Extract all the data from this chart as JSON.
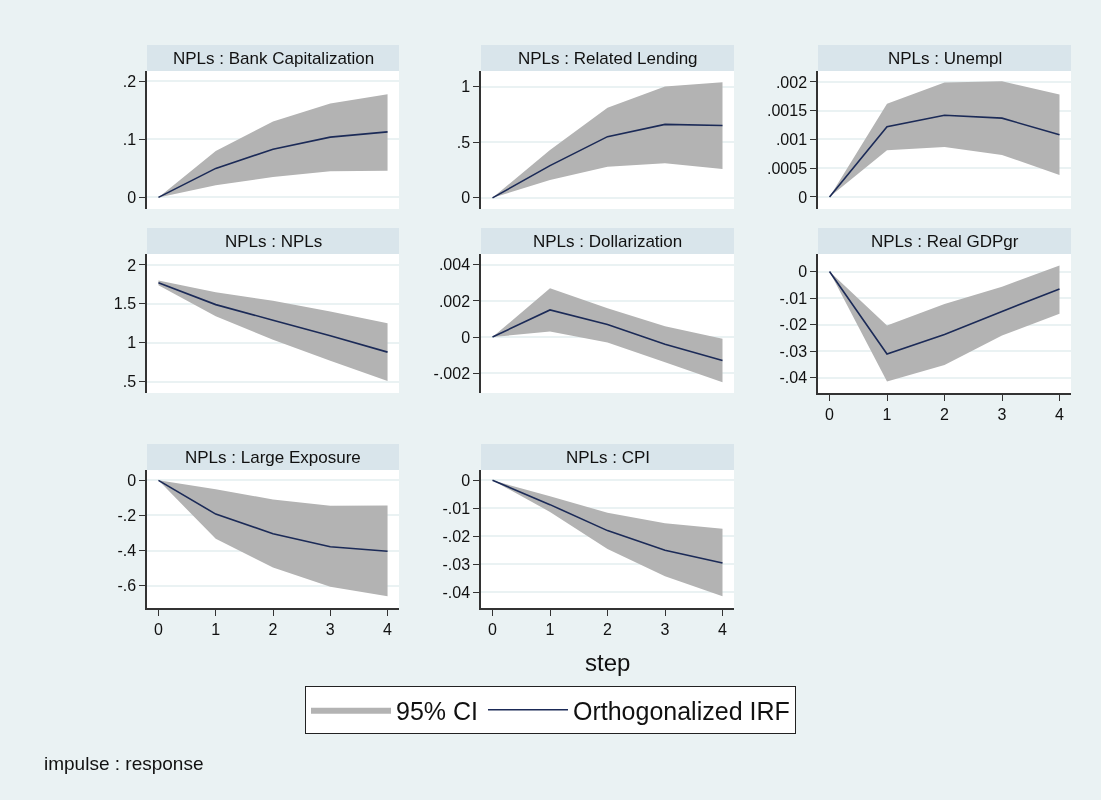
{
  "chart_data": [
    {
      "type": "line",
      "title": "NPLs : Bank Capitalization",
      "annotations": [
        "95% CI"
      ],
      "x": [
        0,
        1,
        2,
        3,
        4
      ],
      "xlim": [
        -0.2,
        4.2
      ],
      "xticks": [
        0,
        1,
        2,
        3,
        4
      ],
      "ylim": [
        -0.02,
        0.218
      ],
      "yticks": [
        0,
        {
          "value": 0.1,
          "label": ".1"
        },
        {
          "value": 0.2,
          "label": ".2"
        }
      ],
      "grid": "y",
      "tick_labels": "y",
      "legend": "bottom",
      "series": [
        {
          "name": "Orthogonalized IRF",
          "color": "#1b2a57",
          "values": [
            0,
            0.05,
            0.083,
            0.104,
            0.113
          ],
          "lower": [
            0,
            0.021,
            0.035,
            0.045,
            0.046
          ],
          "upper": [
            0,
            0.08,
            0.131,
            0.162,
            0.178
          ]
        }
      ]
    },
    {
      "type": "line",
      "title": "NPLs : Related Lending",
      "x": [
        0,
        1,
        2,
        3,
        4
      ],
      "xlim": [
        -0.2,
        4.2
      ],
      "xticks": [
        0,
        1,
        2,
        3,
        4
      ],
      "ylim": [
        -0.1,
        1.14
      ],
      "yticks": [
        0,
        {
          "value": 0.5,
          "label": ".5"
        },
        1
      ],
      "grid": "y",
      "tick_labels": "y",
      "series": [
        {
          "color": "#1b2a57",
          "values": [
            0,
            0.29,
            0.55,
            0.66,
            0.65
          ],
          "lower": [
            0,
            0.16,
            0.28,
            0.31,
            0.26
          ],
          "upper": [
            0,
            0.43,
            0.81,
            1.0,
            1.04
          ]
        }
      ]
    },
    {
      "type": "line",
      "title": "NPLs : Unempl",
      "x": [
        0,
        1,
        2,
        3,
        4
      ],
      "xlim": [
        -0.2,
        4.2
      ],
      "xticks": [
        0,
        1,
        2,
        3,
        4
      ],
      "ylim": [
        -0.00021,
        0.00219
      ],
      "yticks": [
        0,
        {
          "value": 0.0005,
          "label": ".0005"
        },
        {
          "value": 0.001,
          "label": ".001"
        },
        {
          "value": 0.0015,
          "label": ".0015"
        },
        {
          "value": 0.002,
          "label": ".002"
        }
      ],
      "grid": "y",
      "tick_labels": "y",
      "series": [
        {
          "color": "#1b2a57",
          "values": [
            0,
            0.00122,
            0.00142,
            0.00137,
            0.00108
          ],
          "lower": [
            0,
            0.00081,
            0.00087,
            0.00073,
            0.00038
          ],
          "upper": [
            0,
            0.00162,
            0.00199,
            0.00201,
            0.00178
          ]
        }
      ]
    },
    {
      "type": "line",
      "title": "NPLs : NPLs",
      "x": [
        0,
        1,
        2,
        3,
        4
      ],
      "xlim": [
        -0.2,
        4.2
      ],
      "xticks": [
        0,
        1,
        2,
        3,
        4
      ],
      "ylim": [
        0.355,
        2.14
      ],
      "yticks": [
        {
          "value": 0.5,
          "label": ".5"
        },
        1,
        1.5,
        2
      ],
      "grid": "y",
      "tick_labels": "y",
      "series": [
        {
          "color": "#1b2a57",
          "values": [
            1.77,
            1.49,
            1.29,
            1.09,
            0.88
          ],
          "lower": [
            1.74,
            1.34,
            1.04,
            0.77,
            0.51
          ],
          "upper": [
            1.8,
            1.65,
            1.54,
            1.4,
            1.25
          ]
        }
      ]
    },
    {
      "type": "line",
      "title": "NPLs : Dollarization",
      "x": [
        0,
        1,
        2,
        3,
        4
      ],
      "xlim": [
        -0.2,
        4.2
      ],
      "xticks": [
        0,
        1,
        2,
        3,
        4
      ],
      "ylim": [
        -0.0031,
        0.0046
      ],
      "yticks": [
        {
          "value": -0.002,
          "label": "-.002"
        },
        0,
        {
          "value": 0.002,
          "label": ".002"
        },
        {
          "value": 0.004,
          "label": ".004"
        }
      ],
      "grid": "y",
      "tick_labels": "y",
      "series": [
        {
          "color": "#1b2a57",
          "values": [
            0,
            0.0015,
            0.0007,
            -0.0004,
            -0.0013
          ],
          "lower": [
            0,
            0.0003,
            -0.0003,
            -0.0014,
            -0.0025
          ],
          "upper": [
            0,
            0.0027,
            0.0016,
            0.0006,
            -0.0001
          ]
        }
      ]
    },
    {
      "type": "line",
      "title": "NPLs : Real GDPgr",
      "x": [
        0,
        1,
        2,
        3,
        4
      ],
      "xlim": [
        -0.2,
        4.2
      ],
      "xticks": [
        0,
        1,
        2,
        3,
        4
      ],
      "ylim": [
        -0.0457,
        0.0066
      ],
      "yticks": [
        {
          "value": -0.04,
          "label": "-.04"
        },
        {
          "value": -0.03,
          "label": "-.03"
        },
        {
          "value": -0.02,
          "label": "-.02"
        },
        {
          "value": -0.01,
          "label": "-.01"
        },
        0
      ],
      "grid": "y",
      "series": [
        {
          "color": "#1b2a57",
          "values": [
            0,
            -0.031,
            -0.0237,
            -0.015,
            -0.0066
          ],
          "lower": [
            0,
            -0.0414,
            -0.0352,
            -0.0241,
            -0.0159
          ],
          "upper": [
            0,
            -0.0203,
            -0.0122,
            -0.0057,
            0.0023
          ]
        }
      ]
    },
    {
      "type": "line",
      "title": "NPLs : Large Exposure",
      "x": [
        0,
        1,
        2,
        3,
        4
      ],
      "xlim": [
        -0.2,
        4.2
      ],
      "xticks": [
        0,
        1,
        2,
        3,
        4
      ],
      "ylim": [
        -0.727,
        0.059
      ],
      "yticks": [
        {
          "value": -0.6,
          "label": "-.6"
        },
        {
          "value": -0.4,
          "label": "-.4"
        },
        {
          "value": -0.2,
          "label": "-.2"
        },
        0
      ],
      "grid": "y",
      "series": [
        {
          "color": "#1b2a57",
          "values": [
            0,
            -0.192,
            -0.304,
            -0.378,
            -0.404
          ],
          "lower": [
            0,
            -0.333,
            -0.496,
            -0.606,
            -0.66
          ],
          "upper": [
            0,
            -0.05,
            -0.109,
            -0.145,
            -0.143
          ]
        }
      ]
    },
    {
      "type": "line",
      "title": "NPLs : CPI",
      "xlabel": "step",
      "annotations": [
        "impulse : response"
      ],
      "x": [
        0,
        1,
        2,
        3,
        4
      ],
      "xlim": [
        -0.2,
        4.2
      ],
      "xticks": [
        0,
        1,
        2,
        3,
        4
      ],
      "ylim": [
        -0.0457,
        0.0037
      ],
      "yticks": [
        {
          "value": -0.04,
          "label": "-.04"
        },
        {
          "value": -0.03,
          "label": "-.03"
        },
        {
          "value": -0.02,
          "label": "-.02"
        },
        {
          "value": -0.01,
          "label": "-.01"
        },
        0
      ],
      "grid": "y",
      "series": [
        {
          "color": "#1b2a57",
          "values": [
            0,
            -0.0087,
            -0.018,
            -0.025,
            -0.0296
          ],
          "lower": [
            0,
            -0.0113,
            -0.0246,
            -0.0343,
            -0.0415
          ],
          "upper": [
            0,
            -0.0057,
            -0.0116,
            -0.0154,
            -0.0173
          ]
        }
      ]
    }
  ]
}
